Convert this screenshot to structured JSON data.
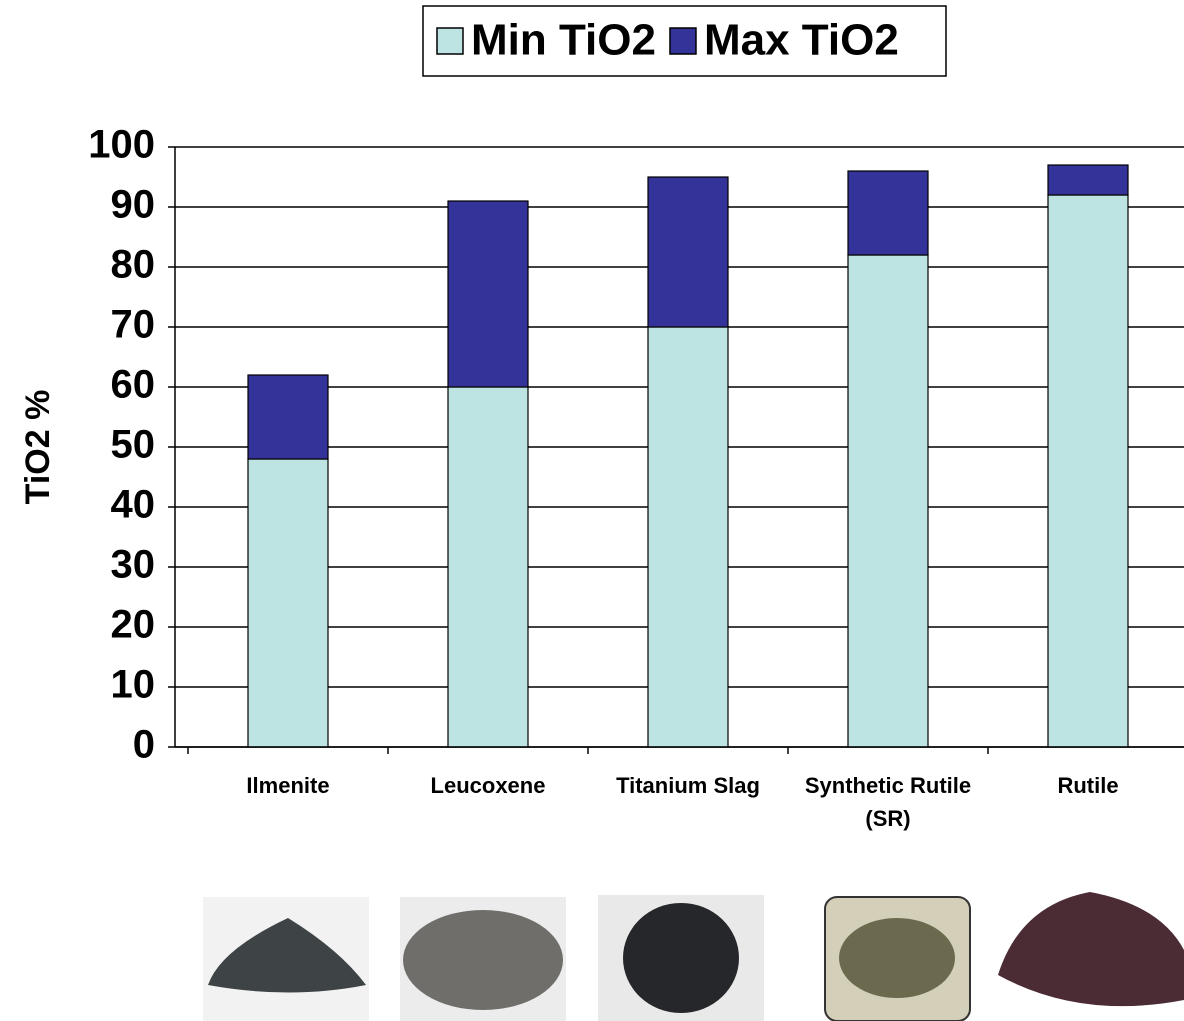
{
  "chart_data": {
    "type": "stacked-bar",
    "categories": [
      "Ilmenite",
      "Leucoxene",
      "Titanium Slag",
      "Synthetic Rutile (SR)",
      "Rutile"
    ],
    "series": [
      {
        "name": "Min TiO2",
        "color": "#bde3e3",
        "values": [
          48,
          60,
          70,
          82,
          92
        ]
      },
      {
        "name": "Max TiO2",
        "color": "#333399",
        "values": [
          14,
          31,
          25,
          14,
          5
        ]
      }
    ],
    "y_label": "TiO2 %",
    "ylim": [
      0,
      100
    ],
    "yticks": [
      0,
      10,
      20,
      30,
      40,
      50,
      60,
      70,
      80,
      90,
      100
    ],
    "grid": true
  }
}
